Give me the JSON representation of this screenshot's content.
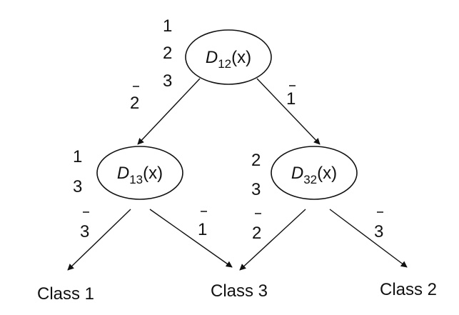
{
  "nodes": {
    "root": {
      "symbol": "D",
      "subscript": "12",
      "arg": "(x)",
      "classes": [
        "1",
        "2",
        "3"
      ]
    },
    "left": {
      "symbol": "D",
      "subscript": "13",
      "arg": "(x)",
      "classes": [
        "1",
        "3"
      ]
    },
    "right": {
      "symbol": "D",
      "subscript": "32",
      "arg": "(x)",
      "classes": [
        "2",
        "3"
      ]
    }
  },
  "edges": {
    "root_left": "2",
    "root_right": "1",
    "left_class1": "3",
    "left_class3": "1",
    "right_class3": "2",
    "right_class2": "3"
  },
  "leaves": {
    "class1": "Class 1",
    "class3": "Class 3",
    "class2": "Class 2"
  }
}
